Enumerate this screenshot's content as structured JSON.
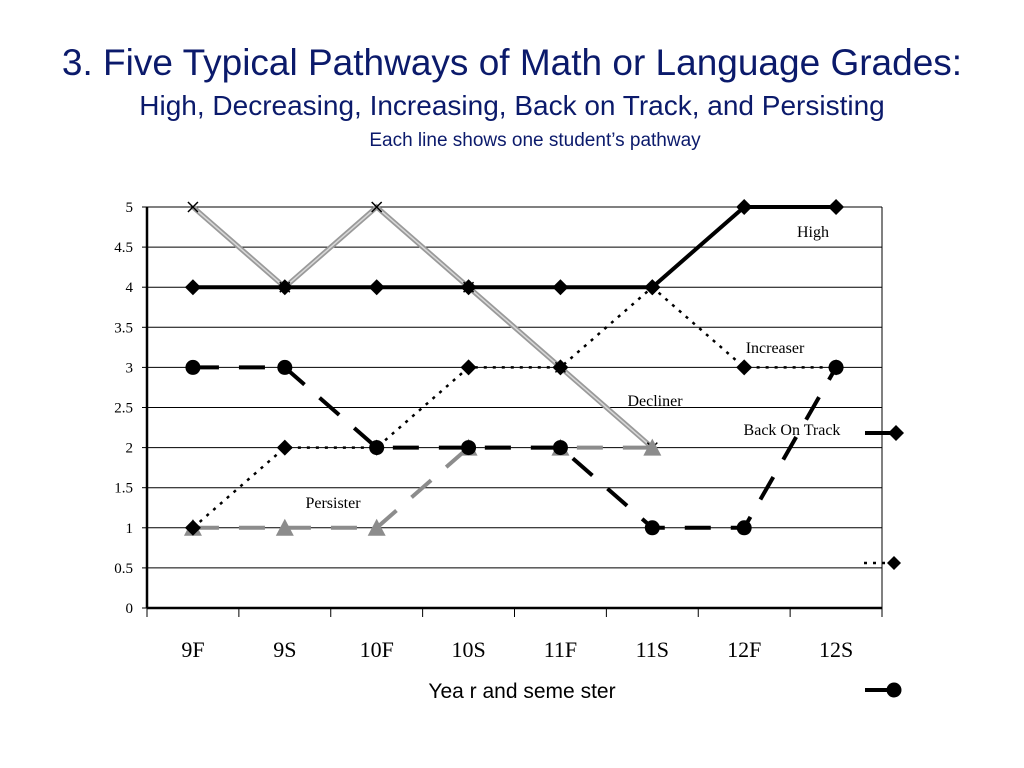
{
  "slide": {
    "title": "3. Five Typical Pathways of Math or Language Grades:",
    "subtitle": "High, Decreasing, Increasing, Back on Track, and Persisting",
    "note": "Each line shows one student’s pathway"
  },
  "chart_data": {
    "type": "line",
    "title": "",
    "xlabel": "Yea r  and  seme ster",
    "ylabel": "",
    "categories": [
      "9F",
      "9S",
      "10F",
      "10S",
      "11F",
      "11S",
      "12F",
      "12S"
    ],
    "ylim": [
      0,
      5
    ],
    "yticks": [
      "0",
      "0.5",
      "1",
      "1.5",
      "2",
      "2.5",
      "3",
      "3.5",
      "4",
      "4.5",
      "5"
    ],
    "grid": true,
    "series": [
      {
        "name": "High",
        "values": [
          4,
          4,
          4,
          4,
          4,
          4,
          5,
          5
        ],
        "color": "#000000",
        "style": "solid",
        "marker": "diamond"
      },
      {
        "name": "Increaser",
        "values": [
          1,
          2,
          2,
          3,
          3,
          4,
          3,
          3
        ],
        "color": "#000000",
        "style": "dotted",
        "marker": "diamond"
      },
      {
        "name": "Decliner",
        "values": [
          5,
          4,
          5,
          4,
          3,
          2,
          null,
          null
        ],
        "color": "#9a9a9a",
        "style": "double",
        "marker": "x"
      },
      {
        "name": "Back On Track",
        "values": [
          3,
          3,
          2,
          2,
          2,
          1,
          1,
          3
        ],
        "color": "#000000",
        "style": "dashed",
        "marker": "circle"
      },
      {
        "name": "Persister",
        "values": [
          1,
          1,
          1,
          2,
          2,
          2,
          null,
          null
        ],
        "color": "#8c8c8c",
        "style": "dashed",
        "marker": "triangle"
      }
    ]
  }
}
